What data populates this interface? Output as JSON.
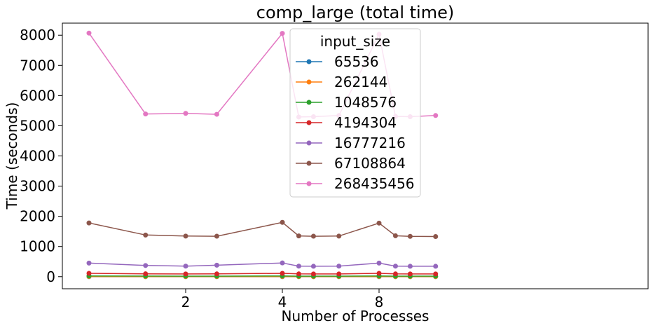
{
  "chart_data": {
    "type": "line",
    "title": "comp_large (total time)",
    "xlabel": "Number of Processes",
    "ylabel": "Time (seconds)",
    "legend_title": "input_size",
    "legend_position": "top-center",
    "x": [
      1,
      1.5,
      2,
      2.5,
      4,
      4.5,
      5,
      6,
      8,
      9,
      10,
      12
    ],
    "x_ticks": [
      {
        "value": 2,
        "label": "2"
      },
      {
        "value": 4,
        "label": "4"
      },
      {
        "value": 8,
        "label": "8"
      }
    ],
    "ylim": [
      -400,
      8400
    ],
    "yticks": [
      0,
      1000,
      2000,
      3000,
      4000,
      5000,
      6000,
      7000,
      8000
    ],
    "grid": false,
    "series": [
      {
        "name": "65536",
        "color": "#1f77b4",
        "values": [
          1,
          1,
          1,
          1,
          1,
          1,
          1,
          1,
          1,
          1,
          1,
          1
        ]
      },
      {
        "name": "262144",
        "color": "#ff7f0e",
        "values": [
          5,
          4,
          4,
          4,
          5,
          4,
          4,
          4,
          5,
          4,
          4,
          4
        ]
      },
      {
        "name": "1048576",
        "color": "#2ca02c",
        "values": [
          25,
          20,
          19,
          19,
          25,
          19,
          19,
          19,
          25,
          19,
          19,
          19
        ]
      },
      {
        "name": "4194304",
        "color": "#d62728",
        "values": [
          110,
          95,
          90,
          92,
          110,
          92,
          90,
          91,
          110,
          92,
          91,
          91
        ]
      },
      {
        "name": "16777216",
        "color": "#9467bd",
        "values": [
          450,
          370,
          350,
          380,
          455,
          350,
          345,
          350,
          450,
          350,
          345,
          345
        ]
      },
      {
        "name": "67108864",
        "color": "#8c564b",
        "values": [
          1780,
          1380,
          1345,
          1340,
          1800,
          1350,
          1340,
          1345,
          1775,
          1355,
          1335,
          1330
        ]
      },
      {
        "name": "268435456",
        "color": "#e377c2",
        "values": [
          8070,
          5390,
          5410,
          5380,
          8060,
          5290,
          5300,
          5340,
          8030,
          5310,
          5300,
          5340
        ]
      }
    ]
  }
}
